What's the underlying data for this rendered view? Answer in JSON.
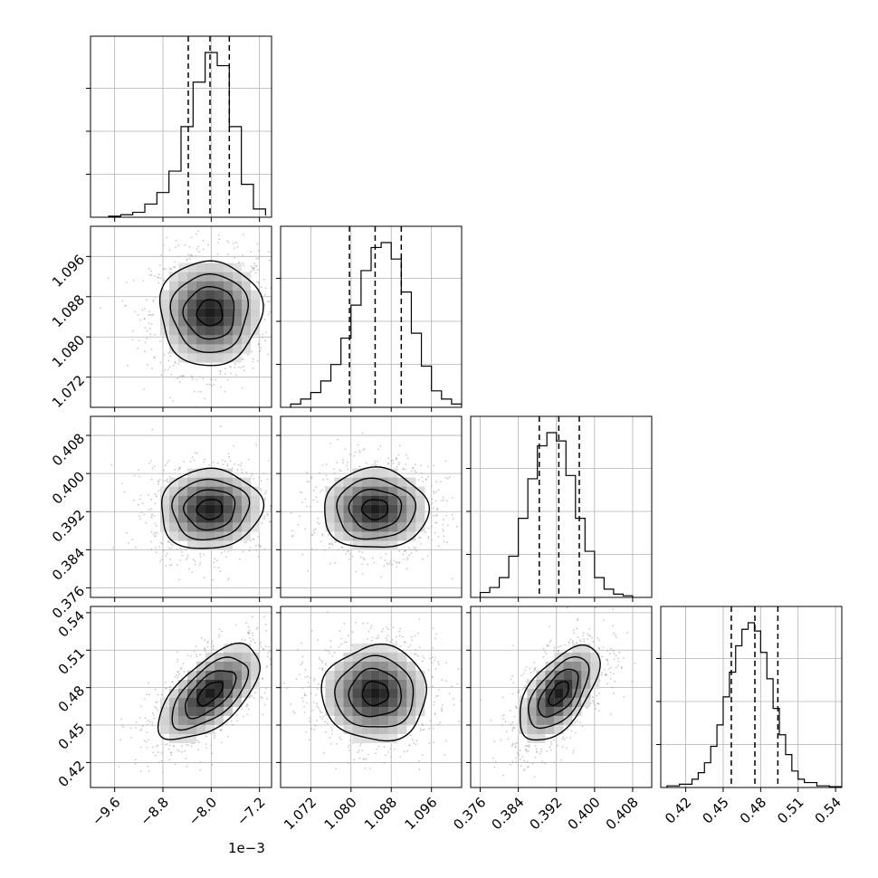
{
  "chart_data": {
    "type": "corner",
    "parameters": [
      {
        "range": [
          -10.0,
          -7.0
        ],
        "ticks": [
          -9.6,
          -8.8,
          -8.0,
          -7.2
        ],
        "tick_labels": [
          "−9.6",
          "−8.8",
          "−8.0",
          "−7.2"
        ],
        "offset_text": "1e−3",
        "quantiles": [
          -8.38,
          -8.02,
          -7.7
        ],
        "hist": {
          "edges": [
            -9.7,
            -9.5,
            -9.3,
            -9.1,
            -8.9,
            -8.7,
            -8.5,
            -8.3,
            -8.1,
            -7.9,
            -7.7,
            -7.5,
            -7.3,
            -7.1
          ],
          "counts": [
            0.006,
            0.015,
            0.03,
            0.08,
            0.15,
            0.28,
            0.55,
            0.82,
            1.0,
            0.92,
            0.55,
            0.2,
            0.05,
            0.01
          ]
        }
      },
      {
        "range": [
          1.066,
          1.102
        ],
        "ticks": [
          1.072,
          1.08,
          1.088,
          1.096
        ],
        "tick_labels": [
          "1.072",
          "1.080",
          "1.088",
          "1.096"
        ],
        "quantiles": [
          1.0797,
          1.0848,
          1.09
        ],
        "hist": {
          "edges": [
            1.068,
            1.07,
            1.072,
            1.074,
            1.076,
            1.078,
            1.08,
            1.082,
            1.084,
            1.086,
            1.088,
            1.09,
            1.092,
            1.094,
            1.096,
            1.098,
            1.1,
            1.102
          ],
          "counts": [
            0.02,
            0.05,
            0.09,
            0.16,
            0.26,
            0.42,
            0.62,
            0.83,
            0.97,
            1.0,
            0.9,
            0.7,
            0.45,
            0.25,
            0.1,
            0.05,
            0.02
          ]
        }
      },
      {
        "range": [
          0.374,
          0.412
        ],
        "ticks": [
          0.376,
          0.384,
          0.392,
          0.4,
          0.408
        ],
        "tick_labels": [
          "0.376",
          "0.384",
          "0.392",
          "0.400",
          "0.408"
        ],
        "quantiles": [
          0.3884,
          0.3925,
          0.3968
        ],
        "hist": {
          "edges": [
            0.376,
            0.378,
            0.38,
            0.382,
            0.384,
            0.386,
            0.388,
            0.39,
            0.392,
            0.394,
            0.396,
            0.398,
            0.4,
            0.402,
            0.404,
            0.406,
            0.408
          ],
          "counts": [
            0.03,
            0.06,
            0.12,
            0.25,
            0.48,
            0.72,
            0.92,
            1.0,
            0.95,
            0.74,
            0.48,
            0.28,
            0.12,
            0.05,
            0.02,
            0.01
          ]
        }
      },
      {
        "range": [
          0.4,
          0.545
        ],
        "ticks": [
          0.42,
          0.45,
          0.48,
          0.51,
          0.54
        ],
        "tick_labels": [
          "0.42",
          "0.45",
          "0.48",
          "0.51",
          "0.54"
        ],
        "quantiles": [
          0.4565,
          0.4754,
          0.4938
        ],
        "hist": {
          "edges": [
            0.405,
            0.415,
            0.425,
            0.43,
            0.435,
            0.44,
            0.445,
            0.45,
            0.455,
            0.46,
            0.465,
            0.47,
            0.475,
            0.48,
            0.485,
            0.49,
            0.495,
            0.5,
            0.505,
            0.51,
            0.515,
            0.525,
            0.535,
            0.545
          ],
          "counts": [
            0.01,
            0.02,
            0.05,
            0.09,
            0.15,
            0.25,
            0.38,
            0.55,
            0.7,
            0.86,
            0.96,
            1.0,
            0.95,
            0.82,
            0.66,
            0.48,
            0.32,
            0.2,
            0.1,
            0.05,
            0.03,
            0.01,
            0.005
          ]
        }
      }
    ],
    "pairs": [
      {
        "x": 0,
        "y": 1,
        "center": [
          -8.02,
          1.0848
        ],
        "sigma": [
          0.42,
          0.0052
        ],
        "rho": 0.0
      },
      {
        "x": 0,
        "y": 2,
        "center": [
          -8.02,
          0.3925
        ],
        "sigma": [
          0.42,
          0.0042
        ],
        "rho": 0.05
      },
      {
        "x": 1,
        "y": 2,
        "center": [
          1.0848,
          0.3925
        ],
        "sigma": [
          0.0052,
          0.0042
        ],
        "rho": 0.0
      },
      {
        "x": 0,
        "y": 3,
        "center": [
          -8.02,
          0.4754
        ],
        "sigma": [
          0.42,
          0.019
        ],
        "rho": 0.62
      },
      {
        "x": 1,
        "y": 3,
        "center": [
          1.0848,
          0.4754
        ],
        "sigma": [
          0.0052,
          0.019
        ],
        "rho": 0.0
      },
      {
        "x": 2,
        "y": 3,
        "center": [
          0.3925,
          0.4754
        ],
        "sigma": [
          0.0042,
          0.019
        ],
        "rho": 0.58
      }
    ],
    "contour_levels_sigma": [
      0.5,
      1.0,
      1.5,
      2.0
    ],
    "grid": true,
    "colors": {
      "line": "#000000",
      "grid": "#b0b0b0",
      "points": "#9a9a9a",
      "density_dark": "#111111"
    }
  }
}
